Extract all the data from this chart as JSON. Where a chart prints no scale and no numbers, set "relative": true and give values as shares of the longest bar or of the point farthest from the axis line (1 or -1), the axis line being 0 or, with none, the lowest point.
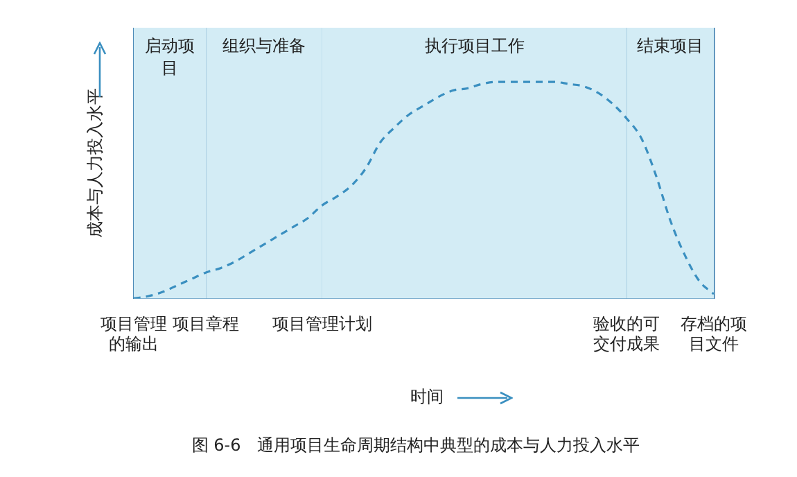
{
  "chart_data": {
    "type": "line",
    "relative": true,
    "ylabel": "成本与人力投入水平",
    "xlabel": "时间",
    "categories": [
      "项目管理的输出",
      null,
      null,
      null,
      null,
      "项目章程",
      null,
      null,
      null,
      null,
      null,
      null,
      null,
      "项目管理计划",
      null,
      null,
      null,
      null,
      null,
      null,
      null,
      null,
      null,
      null,
      null,
      null,
      null,
      null,
      null,
      null,
      null,
      null,
      null,
      null,
      "验收的可交付成果",
      null,
      null,
      null,
      null,
      null,
      "存档的项目文件"
    ],
    "series": [
      {
        "color": "#3a8fc0",
        "values": [
          0,
          0.01,
          0.03,
          0.06,
          0.09,
          0.12,
          0.14,
          0.17,
          0.21,
          0.25,
          0.29,
          0.33,
          0.37,
          0.43,
          0.47,
          0.52,
          0.6,
          0.72,
          0.79,
          0.85,
          0.89,
          0.93,
          0.96,
          0.97,
          0.99,
          1,
          1,
          1,
          1,
          1,
          0.99,
          0.98,
          0.95,
          0.9,
          0.83,
          0.74,
          0.57,
          0.36,
          0.2,
          0.08,
          0.02
        ]
      }
    ],
    "line_style": "dashed",
    "marker": "none",
    "grid": "x",
    "legend": false,
    "bands": [
      {
        "axis": "x",
        "from": "项目管理的输出",
        "to": "项目章程",
        "label": "启动项目",
        "color": "#d3ecf5"
      },
      {
        "axis": "x",
        "from": "项目章程",
        "to": "项目管理计划",
        "label": "组织与准备",
        "color": "#d3ecf5"
      },
      {
        "axis": "x",
        "from": "项目管理计划",
        "to": "验收的可交付成果",
        "label": "执行项目工作",
        "color": "#d3ecf5"
      },
      {
        "axis": "x",
        "from": "验收的可交付成果",
        "to": "存档的项目文件",
        "label": "结束项目",
        "color": "#d3ecf5"
      }
    ],
    "annotations": [
      "图 6-6　通用项目生命周期结构中典型的成本与人力投入水平"
    ]
  }
}
